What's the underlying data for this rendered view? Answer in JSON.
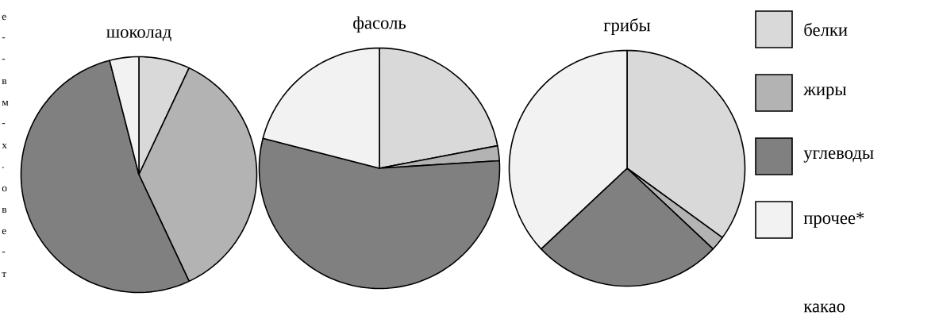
{
  "chart_data": [
    {
      "type": "pie",
      "title": "шоколад",
      "legend": "right",
      "categories": [
        "белки",
        "жиры",
        "углеводы",
        "прочее*"
      ],
      "values": [
        7,
        36,
        53,
        4
      ],
      "colors": [
        "#d9d9d9",
        "#b3b3b3",
        "#808080",
        "#f2f2f2"
      ],
      "annotations": [
        "е",
        "-",
        "-",
        "в",
        "м",
        "-",
        "х",
        ".",
        "о",
        "в",
        "е",
        "-",
        "т"
      ]
    },
    {
      "type": "pie",
      "title": "фасоль",
      "categories": [
        null,
        null,
        null,
        null
      ],
      "values": [
        22,
        2,
        55,
        21
      ],
      "colors": [
        "#d9d9d9",
        "#b3b3b3",
        "#808080",
        "#f2f2f2"
      ]
    },
    {
      "type": "pie",
      "title": "грибы",
      "categories": [
        null,
        null,
        null,
        null
      ],
      "values": [
        35,
        2,
        26,
        37
      ],
      "colors": [
        "#d9d9d9",
        "#b3b3b3",
        "#808080",
        "#f2f2f2"
      ],
      "annotations": [
        "какао"
      ]
    }
  ]
}
